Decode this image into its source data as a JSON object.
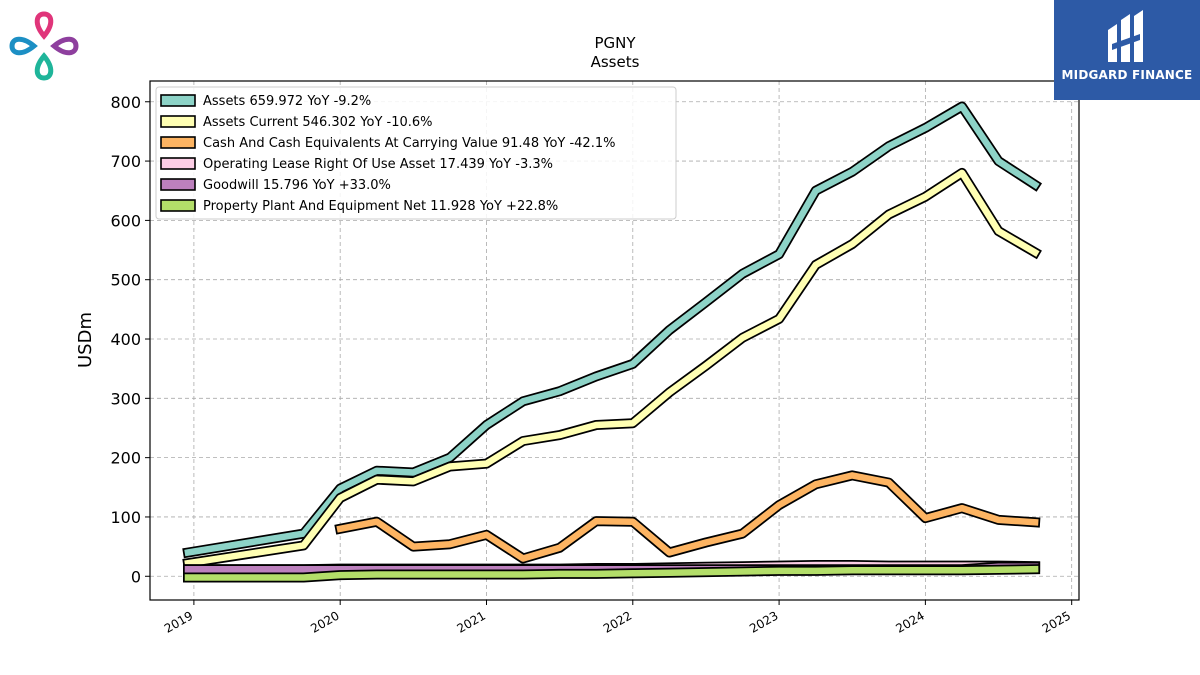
{
  "brand": {
    "name": "MIDGARD FINANCE"
  },
  "colors": {
    "brand_bg": "#2d5aa6"
  },
  "chart_data": {
    "type": "line",
    "title": "PGNY",
    "subtitle": "Assets",
    "ylabel": "USDm",
    "xlabel": "",
    "ylim": [
      -40,
      835
    ],
    "xlim": [
      2018.7,
      2025.05
    ],
    "x_ticks": [
      "2019",
      "2020",
      "2021",
      "2022",
      "2023",
      "2024",
      "2025"
    ],
    "y_ticks": [
      0,
      100,
      200,
      300,
      400,
      500,
      600,
      700,
      800
    ],
    "grid": true,
    "legend_position": "top-left",
    "x": [
      2018.96,
      2019.75,
      2020.0,
      2020.25,
      2020.5,
      2020.75,
      2021.0,
      2021.25,
      2021.5,
      2021.75,
      2022.0,
      2022.25,
      2022.5,
      2022.75,
      2023.0,
      2023.25,
      2023.5,
      2023.75,
      2024.0,
      2024.25,
      2024.5,
      2024.75
    ],
    "series": [
      {
        "name": "Assets",
        "legend": "Assets  659.972 YoY -9.2%",
        "color": "#8dd3c7",
        "values": [
          40,
          72,
          148,
          178,
          175,
          200,
          255,
          295,
          312,
          337,
          358,
          415,
          462,
          510,
          543,
          650,
          682,
          725,
          756,
          792,
          700,
          660
        ]
      },
      {
        "name": "Assets Current",
        "legend": "Assets Current  546.302 YoY -10.6%",
        "color": "#ffffb3",
        "values": [
          22,
          52,
          132,
          163,
          160,
          185,
          190,
          228,
          238,
          255,
          258,
          310,
          355,
          402,
          434,
          525,
          560,
          610,
          640,
          680,
          582,
          546
        ]
      },
      {
        "name": "Cash And Cash Equivalents At Carrying Value",
        "legend": "Cash And Cash Equivalents At Carrying Value  91.48 YoY -42.1%",
        "color": "#fdb462",
        "values": [
          null,
          null,
          80,
          92,
          50,
          54,
          70,
          30,
          48,
          93,
          92,
          40,
          57,
          72,
          120,
          155,
          170,
          158,
          98,
          115,
          95,
          91
        ]
      },
      {
        "name": "Operating Lease Right Of Use Asset",
        "legend": "Operating Lease Right Of Use Asset  17.439 YoY -3.3%",
        "color": "#fccde5",
        "values": [
          12,
          12,
          13,
          13,
          13,
          13,
          13,
          13,
          13,
          14,
          14,
          15,
          16,
          17,
          18,
          19,
          19,
          18,
          18,
          18,
          18,
          17
        ]
      },
      {
        "name": "Goodwill",
        "legend": "Goodwill  15.796 YoY +33.0%",
        "color": "#bc80bd",
        "values": [
          12,
          12,
          12,
          12,
          12,
          12,
          12,
          12,
          12,
          12,
          12,
          12,
          12,
          12,
          12,
          12,
          12,
          12,
          12,
          12,
          16,
          16
        ]
      },
      {
        "name": "Property Plant And Equipment Net",
        "legend": "Property Plant And Equipment Net  11.928 YoY +22.8%",
        "color": "#b3de69",
        "values": [
          -2,
          -2,
          2,
          3,
          3,
          3,
          3,
          3,
          4,
          4,
          5,
          6,
          7,
          8,
          9,
          9,
          10,
          10,
          10,
          10,
          11,
          12
        ]
      }
    ]
  }
}
